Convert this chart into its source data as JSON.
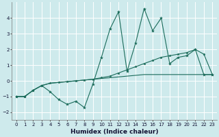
{
  "xlabel": "Humidex (Indice chaleur)",
  "bg_color": "#ceeaec",
  "line_color": "#1a6b5a",
  "grid_color": "#ffffff",
  "xlim": [
    -0.5,
    23.5
  ],
  "ylim": [
    -2.5,
    5.0
  ],
  "xticks": [
    0,
    1,
    2,
    3,
    4,
    5,
    6,
    7,
    8,
    9,
    10,
    11,
    12,
    13,
    14,
    15,
    16,
    17,
    18,
    19,
    20,
    21,
    22,
    23
  ],
  "yticks": [
    -2,
    -1,
    0,
    1,
    2,
    3,
    4
  ],
  "series1_x": [
    0,
    1,
    2,
    3,
    4,
    5,
    6,
    7,
    8,
    9,
    10,
    11,
    12,
    13,
    14,
    15,
    16,
    17,
    18,
    19,
    20,
    21,
    22,
    23
  ],
  "series1_y": [
    -1,
    -1,
    -0.6,
    -0.3,
    -0.7,
    -1.2,
    -1.5,
    -1.3,
    -1.7,
    -0.2,
    1.5,
    3.3,
    4.4,
    0.6,
    2.4,
    4.6,
    3.2,
    4.0,
    1.1,
    1.5,
    1.6,
    2.0,
    0.4,
    0.4
  ],
  "series2_x": [
    0,
    1,
    2,
    3,
    4,
    5,
    6,
    7,
    8,
    9,
    10,
    11,
    12,
    13,
    14,
    15,
    16,
    17,
    18,
    19,
    20,
    21,
    22,
    23
  ],
  "series2_y": [
    -1,
    -1,
    -0.6,
    -0.3,
    -0.15,
    -0.1,
    -0.05,
    0.0,
    0.05,
    0.1,
    0.2,
    0.3,
    0.5,
    0.7,
    0.9,
    1.1,
    1.3,
    1.5,
    1.6,
    1.7,
    1.8,
    2.0,
    1.7,
    0.4
  ],
  "series3_x": [
    0,
    1,
    2,
    3,
    4,
    5,
    6,
    7,
    8,
    9,
    10,
    11,
    12,
    13,
    14,
    15,
    16,
    17,
    18,
    19,
    20,
    21,
    22,
    23
  ],
  "series3_y": [
    -1,
    -1,
    -0.6,
    -0.3,
    -0.15,
    -0.1,
    -0.05,
    0.0,
    0.05,
    0.1,
    0.15,
    0.2,
    0.25,
    0.3,
    0.35,
    0.4,
    0.4,
    0.4,
    0.4,
    0.4,
    0.4,
    0.4,
    0.4,
    0.4
  ]
}
